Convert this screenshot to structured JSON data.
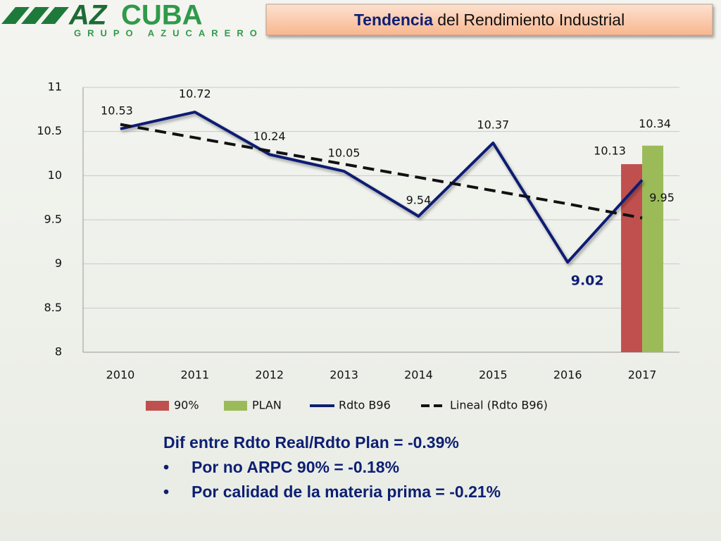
{
  "header": {
    "logo_a": "AZ",
    "logo_b": "CUBA",
    "logo_sub": "GRUPO AZUCARERO",
    "title_strong": "Tendencia",
    "title_rest": "del Rendimiento Industrial"
  },
  "chart_data": {
    "type": "combo",
    "categories": [
      "2010",
      "2011",
      "2012",
      "2013",
      "2014",
      "2015",
      "2016",
      "2017"
    ],
    "series": [
      {
        "name": "90%",
        "type": "bar",
        "color": "#c0504d",
        "values": [
          null,
          null,
          null,
          null,
          null,
          null,
          null,
          10.13
        ]
      },
      {
        "name": "PLAN",
        "type": "bar",
        "color": "#9bbb59",
        "values": [
          null,
          null,
          null,
          null,
          null,
          null,
          null,
          10.34
        ]
      },
      {
        "name": "Rdto B96",
        "type": "line",
        "color": "#0d1f73",
        "values": [
          10.53,
          10.72,
          10.24,
          10.05,
          9.54,
          10.37,
          9.02,
          9.95
        ]
      },
      {
        "name": "Lineal (Rdto B96)",
        "type": "line",
        "dashed": true,
        "color": "#111111",
        "values": [
          10.58,
          10.43,
          10.28,
          10.13,
          9.98,
          9.83,
          9.68,
          9.52
        ]
      }
    ],
    "ylim": [
      8,
      11
    ],
    "yticks": [
      8,
      8.5,
      9,
      9.5,
      10,
      10.5,
      11
    ],
    "grid": true,
    "legend": "bottom"
  },
  "notes": {
    "heading": "Dif entre Rdto Real/Rdto Plan = -0.39%",
    "items": [
      "Por no ARPC 90% = -0.18%",
      "Por calidad de la materia prima = -0.21%"
    ]
  }
}
